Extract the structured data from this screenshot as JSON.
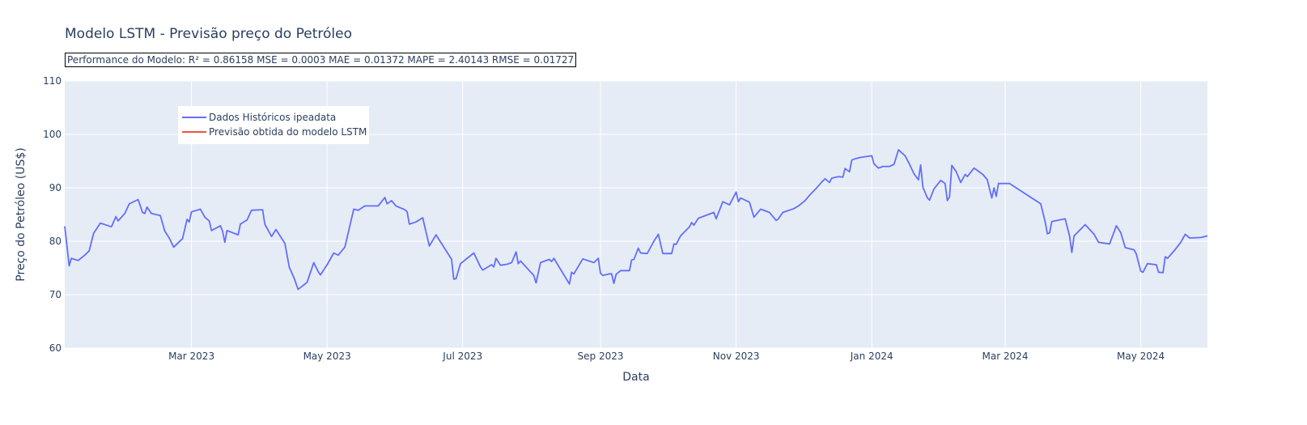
{
  "chart_data": {
    "type": "line",
    "title": "Modelo LSTM - Previsão preço do Petróleo",
    "annotation": "Performance do Modelo: R² = 0.86158 MSE = 0.0003 MAE = 0.01372 MAPE = 2.40143 RMSE = 0.01727",
    "xlabel": "Data",
    "ylabel": "Preço do Petróleo (US$)",
    "xlim": [
      "2023-01-03",
      "2024-05-31"
    ],
    "ylim": [
      60,
      110
    ],
    "y_ticks": [
      60,
      70,
      80,
      90,
      100,
      110
    ],
    "x_ticks": [
      {
        "date": "2023-03-01",
        "label": "Mar 2023"
      },
      {
        "date": "2023-05-01",
        "label": "May 2023"
      },
      {
        "date": "2023-07-01",
        "label": "Jul 2023"
      },
      {
        "date": "2023-09-01",
        "label": "Sep 2023"
      },
      {
        "date": "2023-11-01",
        "label": "Nov 2023"
      },
      {
        "date": "2024-01-01",
        "label": "Jan 2024"
      },
      {
        "date": "2024-03-01",
        "label": "Mar 2024"
      },
      {
        "date": "2024-05-01",
        "label": "May 2024"
      }
    ],
    "grid": true,
    "legend_position": "top-left",
    "series": [
      {
        "name": "Dados Históricos ipeadata",
        "color": "#636efa",
        "points": [
          [
            "2023-01-03",
            82.8
          ],
          [
            "2023-01-05",
            75.4
          ],
          [
            "2023-01-06",
            76.8
          ],
          [
            "2023-01-09",
            76.4
          ],
          [
            "2023-01-12",
            77.4
          ],
          [
            "2023-01-14",
            78.2
          ],
          [
            "2023-01-16",
            81.5
          ],
          [
            "2023-01-19",
            83.4
          ],
          [
            "2023-01-24",
            82.7
          ],
          [
            "2023-01-26",
            84.6
          ],
          [
            "2023-01-27",
            83.8
          ],
          [
            "2023-01-30",
            85.2
          ],
          [
            "2023-02-01",
            87.0
          ],
          [
            "2023-02-05",
            87.8
          ],
          [
            "2023-02-07",
            85.4
          ],
          [
            "2023-02-08",
            85.2
          ],
          [
            "2023-02-09",
            86.4
          ],
          [
            "2023-02-11",
            85.2
          ],
          [
            "2023-02-15",
            84.8
          ],
          [
            "2023-02-17",
            81.9
          ],
          [
            "2023-02-19",
            80.6
          ],
          [
            "2023-02-21",
            78.9
          ],
          [
            "2023-02-25",
            80.5
          ],
          [
            "2023-02-27",
            84.1
          ],
          [
            "2023-02-28",
            83.6
          ],
          [
            "2023-03-01",
            85.5
          ],
          [
            "2023-03-05",
            86.0
          ],
          [
            "2023-03-07",
            84.5
          ],
          [
            "2023-03-09",
            83.8
          ],
          [
            "2023-03-10",
            82.0
          ],
          [
            "2023-03-14",
            82.9
          ],
          [
            "2023-03-15",
            81.9
          ],
          [
            "2023-03-16",
            79.8
          ],
          [
            "2023-03-17",
            82.0
          ],
          [
            "2023-03-22",
            81.2
          ],
          [
            "2023-03-23",
            83.2
          ],
          [
            "2023-03-26",
            84.0
          ],
          [
            "2023-03-28",
            85.8
          ],
          [
            "2023-04-02",
            85.9
          ],
          [
            "2023-04-03",
            83.2
          ],
          [
            "2023-04-06",
            80.9
          ],
          [
            "2023-04-08",
            82.2
          ],
          [
            "2023-04-12",
            79.6
          ],
          [
            "2023-04-14",
            75.1
          ],
          [
            "2023-04-16",
            73.3
          ],
          [
            "2023-04-18",
            71.0
          ],
          [
            "2023-04-22",
            72.3
          ],
          [
            "2023-04-25",
            76.0
          ],
          [
            "2023-04-27",
            74.3
          ],
          [
            "2023-04-28",
            73.7
          ],
          [
            "2023-05-01",
            75.6
          ],
          [
            "2023-05-04",
            77.8
          ],
          [
            "2023-05-06",
            77.4
          ],
          [
            "2023-05-09",
            78.9
          ],
          [
            "2023-05-13",
            86.0
          ],
          [
            "2023-05-15",
            85.8
          ],
          [
            "2023-05-18",
            86.6
          ],
          [
            "2023-05-24",
            86.6
          ],
          [
            "2023-05-27",
            88.2
          ],
          [
            "2023-05-28",
            87.0
          ],
          [
            "2023-05-30",
            87.6
          ],
          [
            "2023-06-01",
            86.6
          ],
          [
            "2023-06-05",
            85.9
          ],
          [
            "2023-06-06",
            85.5
          ],
          [
            "2023-06-07",
            83.2
          ],
          [
            "2023-06-10",
            83.6
          ],
          [
            "2023-06-13",
            84.4
          ],
          [
            "2023-06-16",
            79.1
          ],
          [
            "2023-06-19",
            81.2
          ],
          [
            "2023-06-26",
            76.6
          ],
          [
            "2023-06-27",
            72.9
          ],
          [
            "2023-06-28",
            73.0
          ],
          [
            "2023-06-30",
            75.8
          ],
          [
            "2023-07-06",
            77.8
          ],
          [
            "2023-07-09",
            75.2
          ],
          [
            "2023-07-10",
            74.6
          ],
          [
            "2023-07-14",
            75.6
          ],
          [
            "2023-07-15",
            75.2
          ],
          [
            "2023-07-16",
            76.8
          ],
          [
            "2023-07-18",
            75.5
          ],
          [
            "2023-07-21",
            75.7
          ],
          [
            "2023-07-23",
            76.0
          ],
          [
            "2023-07-25",
            78.0
          ],
          [
            "2023-07-26",
            75.8
          ],
          [
            "2023-07-27",
            76.3
          ],
          [
            "2023-07-31",
            74.5
          ],
          [
            "2023-08-02",
            73.6
          ],
          [
            "2023-08-03",
            72.2
          ],
          [
            "2023-08-05",
            76.0
          ],
          [
            "2023-08-09",
            76.6
          ],
          [
            "2023-08-10",
            76.2
          ],
          [
            "2023-08-11",
            76.8
          ],
          [
            "2023-08-18",
            72.0
          ],
          [
            "2023-08-19",
            74.2
          ],
          [
            "2023-08-20",
            73.9
          ],
          [
            "2023-08-24",
            76.7
          ],
          [
            "2023-08-29",
            76.0
          ],
          [
            "2023-08-31",
            76.8
          ],
          [
            "2023-09-01",
            74.0
          ],
          [
            "2023-09-02",
            73.6
          ],
          [
            "2023-09-05",
            73.9
          ],
          [
            "2023-09-06",
            73.9
          ],
          [
            "2023-09-07",
            72.1
          ],
          [
            "2023-09-08",
            73.8
          ],
          [
            "2023-09-10",
            74.5
          ],
          [
            "2023-09-14",
            74.5
          ],
          [
            "2023-09-15",
            76.5
          ],
          [
            "2023-09-16",
            76.6
          ],
          [
            "2023-09-18",
            78.7
          ],
          [
            "2023-09-19",
            77.8
          ],
          [
            "2023-09-22",
            77.7
          ],
          [
            "2023-09-25",
            80.0
          ],
          [
            "2023-09-27",
            81.3
          ],
          [
            "2023-09-29",
            77.7
          ],
          [
            "2023-10-03",
            77.7
          ],
          [
            "2023-10-04",
            79.5
          ],
          [
            "2023-10-05",
            79.4
          ],
          [
            "2023-10-07",
            81.0
          ],
          [
            "2023-10-11",
            82.7
          ],
          [
            "2023-10-12",
            83.5
          ],
          [
            "2023-10-13",
            83.0
          ],
          [
            "2023-10-15",
            84.3
          ],
          [
            "2023-10-22",
            85.4
          ],
          [
            "2023-10-23",
            84.2
          ],
          [
            "2023-10-26",
            87.4
          ],
          [
            "2023-10-29",
            86.8
          ],
          [
            "2023-11-01",
            89.2
          ],
          [
            "2023-11-02",
            87.4
          ],
          [
            "2023-11-03",
            88.1
          ],
          [
            "2023-11-07",
            87.3
          ],
          [
            "2023-11-09",
            84.5
          ],
          [
            "2023-11-12",
            86.0
          ],
          [
            "2023-11-16",
            85.4
          ],
          [
            "2023-11-19",
            83.9
          ],
          [
            "2023-11-20",
            84.2
          ],
          [
            "2023-11-22",
            85.4
          ],
          [
            "2023-11-27",
            86.1
          ],
          [
            "2023-11-29",
            86.6
          ],
          [
            "2023-12-02",
            87.6
          ],
          [
            "2023-12-04",
            88.6
          ],
          [
            "2023-12-07",
            89.9
          ],
          [
            "2023-12-10",
            91.3
          ],
          [
            "2023-12-11",
            91.7
          ],
          [
            "2023-12-13",
            91.0
          ],
          [
            "2023-12-14",
            91.8
          ],
          [
            "2023-12-17",
            92.1
          ],
          [
            "2023-12-19",
            92.0
          ],
          [
            "2023-12-20",
            93.6
          ],
          [
            "2023-12-22",
            93.0
          ],
          [
            "2023-12-23",
            95.2
          ],
          [
            "2023-12-25",
            95.5
          ],
          [
            "2023-12-27",
            95.7
          ],
          [
            "2024-01-01",
            96.0
          ],
          [
            "2024-01-02",
            94.5
          ],
          [
            "2024-01-04",
            93.7
          ],
          [
            "2024-01-06",
            94.0
          ],
          [
            "2024-01-09",
            94.0
          ],
          [
            "2024-01-11",
            94.4
          ],
          [
            "2024-01-13",
            97.1
          ],
          [
            "2024-01-16",
            96.0
          ],
          [
            "2024-01-18",
            94.4
          ],
          [
            "2024-01-20",
            92.6
          ],
          [
            "2024-01-22",
            91.5
          ],
          [
            "2024-01-23",
            94.3
          ],
          [
            "2024-01-24",
            90.1
          ],
          [
            "2024-01-26",
            88.1
          ],
          [
            "2024-01-27",
            87.7
          ],
          [
            "2024-01-29",
            89.8
          ],
          [
            "2024-02-01",
            91.4
          ],
          [
            "2024-02-03",
            90.8
          ],
          [
            "2024-02-04",
            87.6
          ],
          [
            "2024-02-05",
            88.3
          ],
          [
            "2024-02-06",
            94.2
          ],
          [
            "2024-02-08",
            93.0
          ],
          [
            "2024-02-10",
            91.0
          ],
          [
            "2024-02-12",
            92.5
          ],
          [
            "2024-02-13",
            92.1
          ],
          [
            "2024-02-16",
            93.7
          ],
          [
            "2024-02-20",
            92.5
          ],
          [
            "2024-02-22",
            91.5
          ],
          [
            "2024-02-24",
            88.1
          ],
          [
            "2024-02-25",
            90.0
          ],
          [
            "2024-02-26",
            88.4
          ],
          [
            "2024-02-27",
            90.8
          ],
          [
            "2024-03-02",
            90.8
          ],
          [
            "2024-03-03",
            90.8
          ],
          [
            "2024-03-17",
            87.0
          ],
          [
            "2024-03-19",
            83.6
          ],
          [
            "2024-03-20",
            81.4
          ],
          [
            "2024-03-21",
            81.6
          ],
          [
            "2024-03-22",
            83.7
          ],
          [
            "2024-03-28",
            84.2
          ],
          [
            "2024-03-30",
            80.9
          ],
          [
            "2024-03-31",
            77.9
          ],
          [
            "2024-04-01",
            81.0
          ],
          [
            "2024-04-06",
            83.1
          ],
          [
            "2024-04-10",
            81.3
          ],
          [
            "2024-04-12",
            79.8
          ],
          [
            "2024-04-17",
            79.5
          ],
          [
            "2024-04-20",
            82.9
          ],
          [
            "2024-04-22",
            81.6
          ],
          [
            "2024-04-24",
            78.8
          ],
          [
            "2024-04-28",
            78.4
          ],
          [
            "2024-04-29",
            77.6
          ],
          [
            "2024-05-01",
            74.4
          ],
          [
            "2024-05-02",
            74.2
          ],
          [
            "2024-05-04",
            75.8
          ],
          [
            "2024-05-08",
            75.6
          ],
          [
            "2024-05-09",
            74.2
          ],
          [
            "2024-05-11",
            74.1
          ],
          [
            "2024-05-12",
            77.1
          ],
          [
            "2024-05-13",
            76.8
          ],
          [
            "2024-05-16",
            78.2
          ],
          [
            "2024-05-19",
            79.8
          ],
          [
            "2024-05-21",
            81.3
          ],
          [
            "2024-05-23",
            80.6
          ],
          [
            "2024-05-28",
            80.7
          ],
          [
            "2024-05-31",
            81.0
          ]
        ]
      },
      {
        "name": "Previsão obtida do modelo LSTM",
        "color": "#ef553b",
        "points": []
      }
    ]
  }
}
